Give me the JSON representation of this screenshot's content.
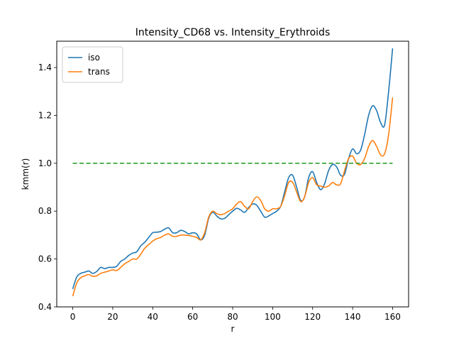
{
  "chart_data": {
    "type": "line",
    "title": "Intensity_CD68 vs. Intensity_Erythroids",
    "xlabel": "r",
    "ylabel": "kmm(r)",
    "xlim": [
      -8,
      168
    ],
    "ylim": [
      0.4,
      1.51
    ],
    "xticks": [
      0,
      20,
      40,
      60,
      80,
      100,
      120,
      140,
      160
    ],
    "yticks": [
      0.4,
      0.6,
      0.8,
      1.0,
      1.2,
      1.4
    ],
    "ytick_labels": [
      "0.4",
      "0.6",
      "0.8",
      "1.0",
      "1.2",
      "1.4"
    ],
    "legend_position": "upper-left",
    "grid": false,
    "x": [
      0,
      2,
      4,
      6,
      8,
      10,
      12,
      14,
      16,
      18,
      20,
      22,
      24,
      26,
      28,
      30,
      32,
      34,
      36,
      38,
      40,
      42,
      44,
      46,
      48,
      50,
      52,
      54,
      56,
      58,
      60,
      62,
      64,
      66,
      68,
      70,
      72,
      74,
      76,
      78,
      80,
      82,
      84,
      86,
      88,
      90,
      92,
      94,
      96,
      98,
      100,
      102,
      104,
      106,
      108,
      110,
      112,
      114,
      116,
      118,
      120,
      122,
      124,
      126,
      128,
      130,
      132,
      134,
      136,
      138,
      140,
      142,
      144,
      146,
      148,
      150,
      152,
      154,
      156,
      158,
      160
    ],
    "series": [
      {
        "name": "iso",
        "color": "#1f77b4",
        "values": [
          0.475,
          0.525,
          0.54,
          0.545,
          0.55,
          0.54,
          0.548,
          0.565,
          0.56,
          0.565,
          0.565,
          0.57,
          0.59,
          0.6,
          0.615,
          0.625,
          0.63,
          0.655,
          0.67,
          0.69,
          0.71,
          0.712,
          0.715,
          0.725,
          0.73,
          0.71,
          0.71,
          0.72,
          0.715,
          0.705,
          0.71,
          0.705,
          0.68,
          0.7,
          0.77,
          0.795,
          0.78,
          0.768,
          0.77,
          0.785,
          0.8,
          0.812,
          0.805,
          0.795,
          0.815,
          0.83,
          0.825,
          0.8,
          0.775,
          0.78,
          0.79,
          0.8,
          0.82,
          0.88,
          0.94,
          0.95,
          0.9,
          0.845,
          0.86,
          0.94,
          0.965,
          0.92,
          0.89,
          0.915,
          0.97,
          0.995,
          0.985,
          0.95,
          0.955,
          1.02,
          1.06,
          1.04,
          1.055,
          1.12,
          1.2,
          1.24,
          1.22,
          1.17,
          1.16,
          1.3,
          1.48
        ]
      },
      {
        "name": "trans",
        "color": "#ff7f0e",
        "values": [
          0.445,
          0.5,
          0.522,
          0.53,
          0.535,
          0.528,
          0.53,
          0.54,
          0.545,
          0.55,
          0.555,
          0.552,
          0.565,
          0.58,
          0.59,
          0.6,
          0.6,
          0.62,
          0.645,
          0.66,
          0.675,
          0.685,
          0.69,
          0.7,
          0.705,
          0.695,
          0.695,
          0.7,
          0.7,
          0.698,
          0.695,
          0.69,
          0.68,
          0.71,
          0.775,
          0.8,
          0.79,
          0.785,
          0.79,
          0.8,
          0.81,
          0.83,
          0.84,
          0.82,
          0.81,
          0.84,
          0.86,
          0.845,
          0.81,
          0.8,
          0.81,
          0.81,
          0.82,
          0.865,
          0.92,
          0.92,
          0.88,
          0.84,
          0.86,
          0.92,
          0.94,
          0.91,
          0.905,
          0.9,
          0.905,
          0.92,
          0.91,
          0.915,
          0.97,
          1.02,
          1.03,
          1.0,
          0.995,
          1.02,
          1.07,
          1.095,
          1.07,
          1.035,
          1.04,
          1.12,
          1.275
        ]
      },
      {
        "name": "",
        "color": "#2ca02c",
        "dashed": true,
        "x": [
          0,
          160
        ],
        "values": [
          1.0,
          1.0
        ]
      }
    ]
  }
}
